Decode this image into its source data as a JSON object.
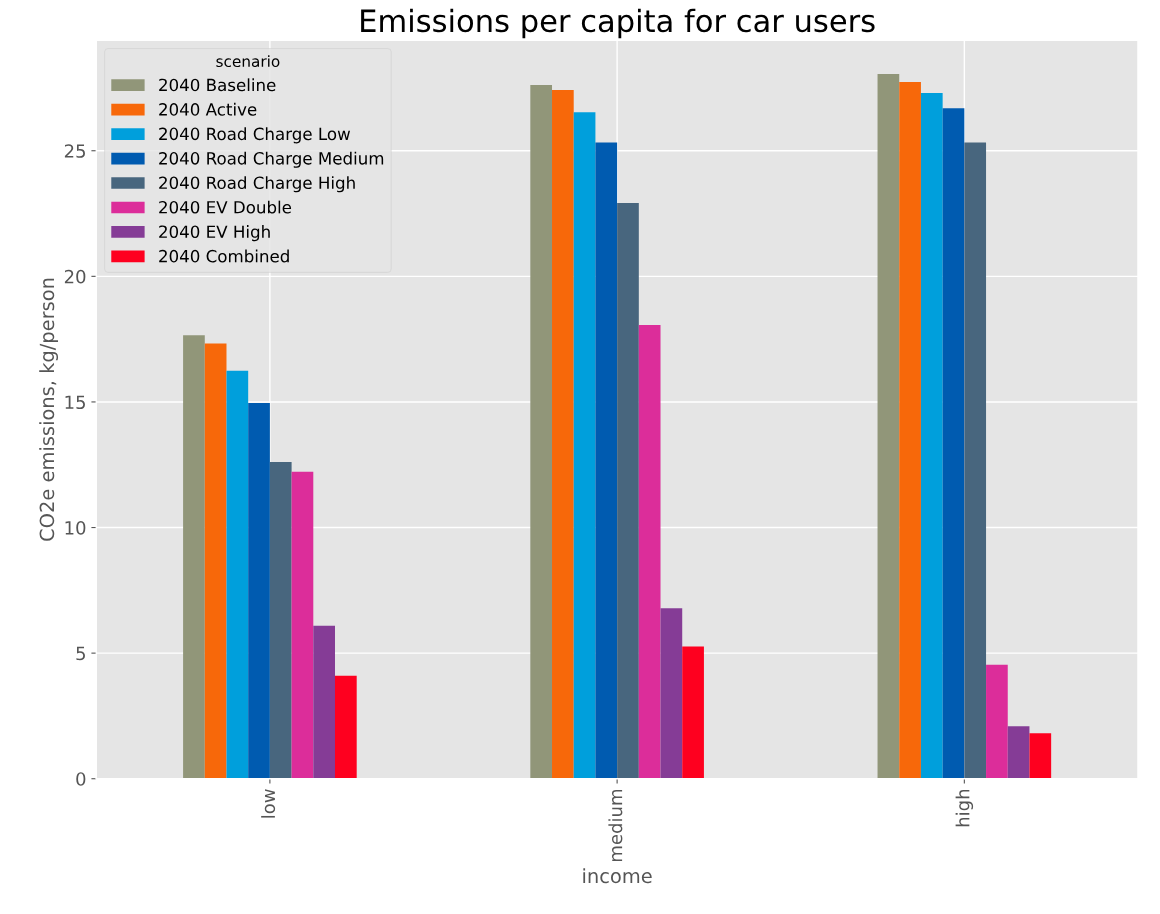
{
  "chart_data": {
    "type": "bar",
    "title": "Emissions per capita for car users",
    "xlabel": "income",
    "ylabel": "CO2e emissions, kg/person",
    "legend_title": "scenario",
    "categories": [
      "low",
      "medium",
      "high"
    ],
    "series": [
      {
        "name": "2040 Baseline",
        "color": "#919679",
        "values": [
          17.65,
          27.62,
          28.06
        ]
      },
      {
        "name": "2040 Active",
        "color": "#f7680a",
        "values": [
          17.33,
          27.42,
          27.74
        ]
      },
      {
        "name": "2040 Road Charge Low",
        "color": "#009fdc",
        "values": [
          16.24,
          26.53,
          27.3
        ]
      },
      {
        "name": "2040 Road Charge Medium",
        "color": "#005bb0",
        "values": [
          14.96,
          25.33,
          26.69
        ]
      },
      {
        "name": "2040 Road Charge High",
        "color": "#48667e",
        "values": [
          12.61,
          22.92,
          25.33
        ]
      },
      {
        "name": "2040 EV Double",
        "color": "#dc2d9a",
        "values": [
          12.22,
          18.06,
          4.54
        ]
      },
      {
        "name": "2040 EV High",
        "color": "#853c96",
        "values": [
          6.09,
          6.79,
          2.09
        ]
      },
      {
        "name": "2040 Combined",
        "color": "#fe001f",
        "values": [
          4.1,
          5.26,
          1.81
        ]
      }
    ],
    "ylim": [
      0,
      29.4
    ],
    "yticks": [
      0,
      5,
      10,
      15,
      20,
      25
    ],
    "grid": true,
    "legend": "top left"
  }
}
